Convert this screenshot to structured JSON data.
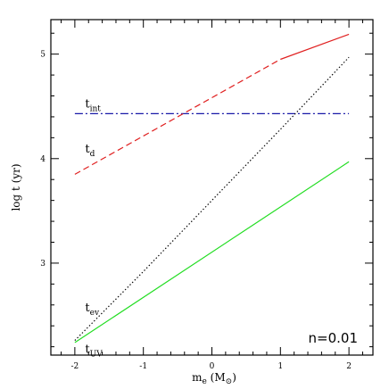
{
  "chart_data": {
    "type": "line",
    "xlabel": {
      "main": "m",
      "sub": "e",
      "unit_open": " (M",
      "unit_sub": "⊙",
      "unit_close": ")"
    },
    "ylabel": "log t (yr)",
    "xlim": [
      -2.35,
      2.35
    ],
    "ylim": [
      2.12,
      5.33
    ],
    "xticks_major": [
      -2,
      -1,
      0,
      1,
      2
    ],
    "xtick_labels": [
      "-2",
      "-1",
      "0",
      "1",
      "2"
    ],
    "yticks_major": [
      3,
      4,
      5
    ],
    "ytick_labels": [
      "3",
      "4",
      "5"
    ],
    "annotation": "n=0.01",
    "series": [
      {
        "label": {
          "main": "t",
          "sub": "int"
        },
        "color": "#1a1aa8",
        "style": "dashdot",
        "points": [
          [
            -2,
            4.43
          ],
          [
            2,
            4.43
          ]
        ]
      },
      {
        "label": {
          "main": "t",
          "sub": "d"
        },
        "color": "#e02020",
        "style": "dashed",
        "points": [
          [
            -2,
            3.85
          ],
          [
            1.0,
            4.95
          ]
        ],
        "solid_continuation": [
          [
            1.0,
            4.95
          ],
          [
            2,
            5.19
          ]
        ]
      },
      {
        "label": {
          "main": "t",
          "sub": "ev"
        },
        "color": "#000000",
        "style": "dotted",
        "points": [
          [
            -2,
            2.26
          ],
          [
            -1,
            2.92
          ],
          [
            0,
            3.6
          ],
          [
            1,
            4.28
          ],
          [
            2,
            4.97
          ]
        ]
      },
      {
        "label": {
          "main": "t",
          "sub": "UV"
        },
        "color": "#22dd22",
        "style": "solid",
        "points": [
          [
            -2,
            2.24
          ],
          [
            2,
            3.97
          ]
        ]
      }
    ]
  }
}
